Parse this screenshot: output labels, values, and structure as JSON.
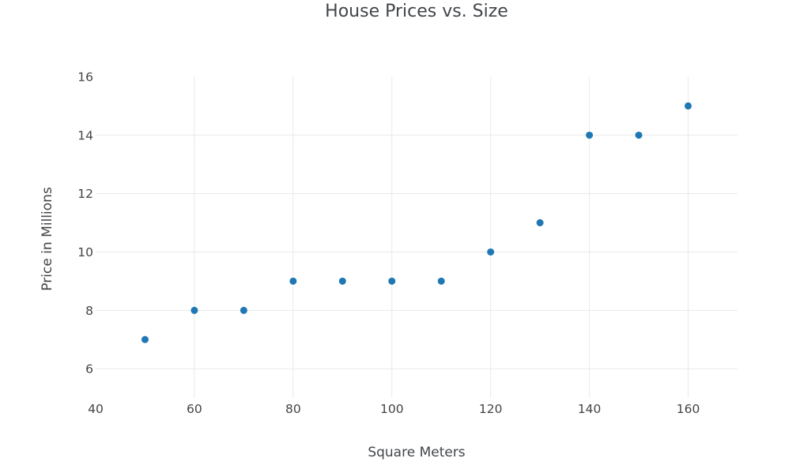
{
  "title": "House Prices vs. Size",
  "colors": {
    "marker": "#1f77b4",
    "grid": "#e9e9e9",
    "tick_text": "#444444",
    "title_text": "#42454a",
    "background": "#ffffff"
  },
  "chart_data": {
    "type": "scatter",
    "title": "House Prices vs. Size",
    "xlabel": "Square Meters",
    "ylabel": "Price in Millions",
    "x": [
      50,
      60,
      70,
      80,
      90,
      100,
      110,
      120,
      130,
      140,
      150,
      160
    ],
    "y": [
      7,
      8,
      8,
      9,
      9,
      9,
      9,
      10,
      11,
      14,
      14,
      15
    ],
    "xlim": [
      40,
      170
    ],
    "ylim": [
      5,
      16
    ],
    "xticks": [
      40,
      60,
      80,
      100,
      120,
      140,
      160
    ],
    "yticks": [
      6,
      8,
      10,
      12,
      14,
      16
    ],
    "grid": true,
    "legend": false,
    "marker_diameter_px": 9
  }
}
